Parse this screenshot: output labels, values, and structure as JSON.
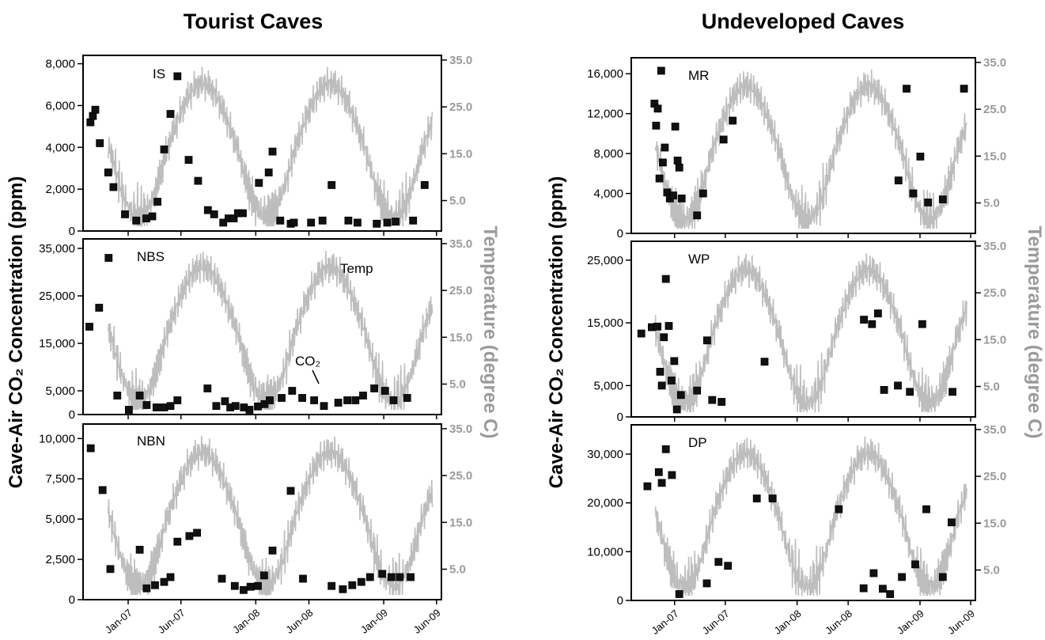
{
  "titles": {
    "left": "Tourist Caves",
    "right": "Undeveloped Caves"
  },
  "ylabel_left": "Cave-Air CO₂ Concentration (ppm)",
  "ylabel_right": "Temperature  (degree C)",
  "colors": {
    "temp_line": "#bdbdbd",
    "co2_marker": "#111111",
    "axis": "#000000",
    "temp_tick": "#9a9a9a"
  },
  "temp_axis": {
    "ticks": [
      5.0,
      15.0,
      25.0,
      35.0
    ],
    "tick_labels": [
      "5.0",
      "15.0",
      "25.0",
      "35.0"
    ],
    "ylim": [
      -1.5,
      36.0
    ]
  },
  "date_axis": {
    "labels": [
      "Jan-07",
      "Jun-07",
      "Jan-08",
      "Jun-08",
      "Jan-09",
      "Jun-09"
    ],
    "dates": [
      "2007-01-01",
      "2007-06-01",
      "2008-01-01",
      "2008-06-01",
      "2009-01-01",
      "2009-06-01"
    ]
  },
  "chart_data": [
    {
      "type": "scatter",
      "group": "Tourist Caves",
      "panel": "IS",
      "y_ticks": [
        0,
        2000,
        4000,
        6000,
        8000
      ],
      "y_tick_labels": [
        "0",
        "2,000",
        "4,000",
        "6,000",
        "8,000"
      ],
      "ylim": [
        0,
        8400
      ],
      "co2": {
        "x": [
          "2006-09-15",
          "2006-09-22",
          "2006-09-29",
          "2006-10-12",
          "2006-11-05",
          "2006-11-20",
          "2006-12-23",
          "2007-01-24",
          "2007-02-22",
          "2007-03-11",
          "2007-03-26",
          "2007-04-14",
          "2007-05-02",
          "2007-05-22",
          "2007-06-23",
          "2007-07-20",
          "2007-08-17",
          "2007-09-04",
          "2007-09-30",
          "2007-10-15",
          "2007-10-30",
          "2007-11-11",
          "2007-11-25",
          "2008-01-10",
          "2008-02-07",
          "2008-02-18",
          "2008-03-11",
          "2008-04-10",
          "2008-04-19",
          "2008-06-07",
          "2008-07-10",
          "2008-08-05",
          "2008-09-22",
          "2008-10-18",
          "2008-12-12",
          "2009-01-11",
          "2009-02-04",
          "2009-03-26",
          "2009-04-28"
        ],
        "y": [
          5200,
          5500,
          5800,
          4200,
          2800,
          2100,
          800,
          500,
          600,
          700,
          1400,
          3900,
          5600,
          7400,
          3400,
          2400,
          1000,
          800,
          400,
          600,
          600,
          850,
          850,
          2300,
          2800,
          3800,
          500,
          350,
          400,
          400,
          500,
          2200,
          500,
          400,
          350,
          400,
          450,
          500,
          2200
        ]
      },
      "temp_span": [
        "2006-11-05",
        "2009-05-20"
      ]
    },
    {
      "type": "scatter",
      "group": "Tourist Caves",
      "panel": "NBS",
      "labels": {
        "temp": "Temp",
        "co2": "CO₂"
      },
      "y_ticks": [
        0,
        5000,
        15000,
        25000,
        35000
      ],
      "y_tick_labels": [
        "0",
        "5,000",
        "15,000",
        "25,000",
        "35,000"
      ],
      "ylim": [
        0,
        37000
      ],
      "co2": {
        "x": [
          "2006-09-12",
          "2006-10-10",
          "2006-11-06",
          "2006-12-01",
          "2007-01-03",
          "2007-02-03",
          "2007-02-23",
          "2007-03-23",
          "2007-04-14",
          "2007-05-02",
          "2007-05-22",
          "2007-08-16",
          "2007-09-10",
          "2007-10-05",
          "2007-10-20",
          "2007-11-04",
          "2007-11-28",
          "2007-12-14",
          "2008-01-07",
          "2008-01-26",
          "2008-02-10",
          "2008-03-15",
          "2008-04-14",
          "2008-05-13",
          "2008-06-16",
          "2008-07-14",
          "2008-08-24",
          "2008-09-19",
          "2008-10-12",
          "2008-11-03",
          "2008-12-05",
          "2009-01-05",
          "2009-01-29",
          "2009-03-09"
        ],
        "y": [
          18500,
          22500,
          33000,
          4000,
          1000,
          4000,
          2000,
          1500,
          1500,
          1800,
          3000,
          5500,
          1800,
          2800,
          1500,
          1800,
          1500,
          1000,
          1700,
          2200,
          3000,
          3500,
          5000,
          3500,
          3000,
          1800,
          2500,
          3000,
          3000,
          4000,
          5500,
          5000,
          3000,
          3500
        ]
      },
      "temp_span": [
        "2006-11-05",
        "2009-05-20"
      ]
    },
    {
      "type": "scatter",
      "group": "Tourist Caves",
      "panel": "NBN",
      "y_ticks": [
        0,
        2500,
        5000,
        7500,
        10000
      ],
      "y_tick_labels": [
        "0",
        "2,500",
        "5,000",
        "7,500",
        "10,000"
      ],
      "ylim": [
        0,
        10900
      ],
      "co2": {
        "x": [
          "2006-09-16",
          "2006-10-20",
          "2006-11-11",
          "2007-02-03",
          "2007-02-23",
          "2007-03-19",
          "2007-04-14",
          "2007-05-02",
          "2007-05-22",
          "2007-06-25",
          "2007-07-17",
          "2007-09-26",
          "2007-11-02",
          "2007-11-27",
          "2007-12-17",
          "2008-01-07",
          "2008-01-25",
          "2008-02-18",
          "2008-04-10",
          "2008-05-15",
          "2008-08-05",
          "2008-09-06",
          "2008-10-03",
          "2008-10-29",
          "2008-11-23",
          "2008-12-28",
          "2009-01-23",
          "2009-02-16",
          "2009-03-19"
        ],
        "y": [
          9400,
          6800,
          1900,
          3100,
          700,
          900,
          1100,
          1400,
          3600,
          3950,
          4150,
          1300,
          850,
          600,
          800,
          850,
          1500,
          3050,
          6750,
          1300,
          850,
          650,
          900,
          1100,
          1400,
          1600,
          1400,
          1400,
          1400
        ]
      },
      "temp_span": [
        "2006-11-05",
        "2009-05-20"
      ]
    },
    {
      "type": "scatter",
      "group": "Undeveloped Caves",
      "panel": "MR",
      "y_ticks": [
        0,
        4000,
        8000,
        12000,
        16000
      ],
      "y_tick_labels": [
        "0",
        "4,000",
        "8,000",
        "12,000",
        "16,000"
      ],
      "ylim": [
        0,
        17600
      ],
      "co2": {
        "x": [
          "2006-11-02",
          "2006-11-07",
          "2006-11-12",
          "2006-11-17",
          "2006-11-22",
          "2006-11-27",
          "2006-12-03",
          "2006-12-10",
          "2006-12-18",
          "2006-12-28",
          "2007-01-03",
          "2007-01-10",
          "2007-01-15",
          "2007-01-22",
          "2007-03-09",
          "2007-03-27",
          "2007-05-27",
          "2007-06-23",
          "2008-10-29",
          "2008-11-22",
          "2008-12-12",
          "2009-01-02",
          "2009-01-25",
          "2009-03-10",
          "2009-05-12"
        ],
        "y": [
          13000,
          10800,
          12500,
          5500,
          16300,
          7100,
          8600,
          4100,
          3500,
          3800,
          10700,
          7300,
          6600,
          3500,
          1800,
          4000,
          9400,
          11300,
          5300,
          14500,
          4000,
          7700,
          3100,
          3400,
          14500
        ]
      },
      "temp_span": [
        "2006-11-05",
        "2009-05-20"
      ]
    },
    {
      "type": "scatter",
      "group": "Undeveloped Caves",
      "panel": "WP",
      "y_ticks": [
        0,
        5000,
        15000,
        25000
      ],
      "y_tick_labels": [
        "0",
        "5,000",
        "15,000",
        "25,000"
      ],
      "ylim": [
        0,
        28000
      ],
      "co2": {
        "x": [
          "2006-09-24",
          "2006-10-25",
          "2006-11-11",
          "2006-11-19",
          "2006-11-24",
          "2006-11-30",
          "2006-12-06",
          "2006-12-15",
          "2006-12-23",
          "2006-12-31",
          "2007-01-08",
          "2007-01-20",
          "2007-03-09",
          "2007-04-08",
          "2007-04-23",
          "2007-05-21",
          "2007-09-26",
          "2008-07-18",
          "2008-08-11",
          "2008-08-29",
          "2008-09-16",
          "2008-10-27",
          "2008-12-02",
          "2009-01-08",
          "2009-04-08"
        ],
        "y": [
          13300,
          14300,
          14400,
          7200,
          5000,
          12700,
          22000,
          14500,
          5800,
          8900,
          1200,
          3500,
          4200,
          12200,
          2700,
          2400,
          8800,
          15500,
          14800,
          16500,
          4300,
          5000,
          4000,
          14800,
          4000
        ]
      },
      "temp_span": [
        "2006-11-05",
        "2009-05-20"
      ]
    },
    {
      "type": "scatter",
      "group": "Undeveloped Caves",
      "panel": "DP",
      "y_ticks": [
        0,
        10000,
        20000,
        30000
      ],
      "y_tick_labels": [
        "0",
        "10,000",
        "20,000",
        "30,000"
      ],
      "ylim": [
        0,
        36000
      ],
      "co2": {
        "x": [
          "2006-10-12",
          "2006-11-15",
          "2006-11-24",
          "2006-12-06",
          "2006-12-24",
          "2007-01-15",
          "2007-04-07",
          "2007-05-12",
          "2007-06-09",
          "2007-09-03",
          "2007-10-20",
          "2008-05-04",
          "2008-07-17",
          "2008-08-16",
          "2008-09-12",
          "2008-10-04",
          "2008-11-08",
          "2008-12-18",
          "2009-01-20",
          "2009-03-10",
          "2009-04-05"
        ],
        "y": [
          23400,
          26300,
          24100,
          31000,
          25700,
          1300,
          3500,
          7900,
          7100,
          20900,
          20900,
          18700,
          2500,
          5600,
          2400,
          1300,
          4800,
          7400,
          18700,
          4800,
          16000
        ]
      },
      "temp_span": [
        "2006-11-05",
        "2009-05-20"
      ]
    }
  ]
}
